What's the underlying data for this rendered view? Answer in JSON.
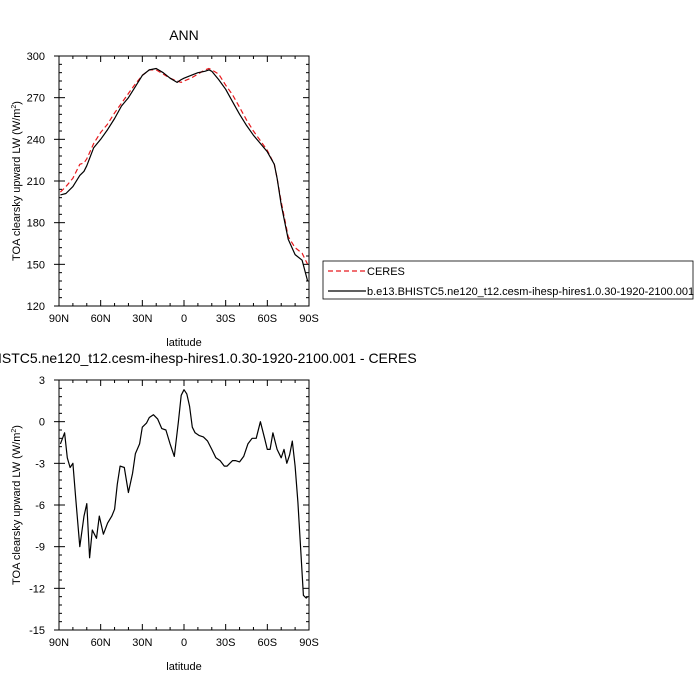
{
  "chart_data": [
    {
      "type": "line",
      "title": "ANN",
      "xlabel": "latitude",
      "ylabel": "TOA clearsky upward LW (W/m",
      "ylabel_sup": "2",
      "ylabel_tail": ")",
      "xlim": [
        90,
        -90
      ],
      "ylim": [
        120,
        300
      ],
      "x_ticks": [
        90,
        60,
        30,
        0,
        -30,
        -60,
        -90
      ],
      "x_tick_labels": [
        "90N",
        "60N",
        "30N",
        "0",
        "30S",
        "60S",
        "90S"
      ],
      "y_ticks": [
        120,
        150,
        180,
        210,
        240,
        270,
        300
      ],
      "y_tick_labels": [
        "120",
        "150",
        "180",
        "210",
        "240",
        "270",
        "300"
      ],
      "legend": {
        "placement": "right",
        "entries": [
          "CERES",
          "b.e13.BHISTC5.ne120_t12.cesm-ihesp-hires1.0.30-1920-2100.001"
        ]
      },
      "series": [
        {
          "name": "CERES",
          "color": "#e8191d",
          "dash": "dashed",
          "x": [
            89,
            85,
            80,
            75,
            72,
            70,
            65,
            60,
            55,
            50,
            45,
            40,
            35,
            30,
            25,
            20,
            15,
            10,
            5,
            2,
            0,
            -5,
            -10,
            -15,
            -18,
            -20,
            -25,
            -30,
            -35,
            -40,
            -45,
            -50,
            -55,
            -60,
            -65,
            -67,
            -70,
            -75,
            -80,
            -85,
            -89
          ],
          "y": [
            202,
            206,
            212,
            222,
            223,
            226,
            237,
            245,
            251,
            259,
            266,
            273,
            280,
            286,
            290,
            290,
            287,
            284,
            282,
            281,
            282,
            284,
            287,
            290,
            291,
            290,
            287,
            279,
            272,
            263,
            254,
            246,
            239,
            232,
            222,
            212,
            195,
            170,
            162,
            158,
            150
          ]
        },
        {
          "name": "b.e13.BHISTC5.ne120_t12.cesm-ihesp-hires1.0.30-1920-2100.001",
          "color": "#000000",
          "dash": "solid",
          "x": [
            89,
            85,
            80,
            75,
            72,
            70,
            65,
            60,
            55,
            50,
            45,
            40,
            35,
            30,
            25,
            20,
            15,
            10,
            5,
            2,
            0,
            -5,
            -10,
            -15,
            -18,
            -20,
            -25,
            -30,
            -35,
            -40,
            -45,
            -50,
            -55,
            -60,
            -65,
            -67,
            -70,
            -75,
            -80,
            -85,
            -89
          ],
          "y": [
            200,
            201,
            206,
            214,
            217,
            221,
            234,
            240,
            247,
            255,
            264,
            270,
            278,
            286,
            290,
            291,
            288,
            284,
            281,
            283,
            284,
            286,
            288,
            289,
            290,
            289,
            283,
            276,
            267,
            258,
            250,
            243,
            237,
            231,
            222,
            212,
            193,
            168,
            157,
            153,
            138
          ]
        }
      ]
    },
    {
      "type": "line",
      "title": "ISTC5.ne120_t12.cesm-ihesp-hires1.0.30-1920-2100.001 - CERES",
      "xlabel": "latitude",
      "ylabel": "TOA clearsky upward LW (W/m",
      "ylabel_sup": "2",
      "ylabel_tail": ")",
      "xlim": [
        90,
        -90
      ],
      "ylim": [
        -15,
        3
      ],
      "x_ticks": [
        90,
        60,
        30,
        0,
        -30,
        -60,
        -90
      ],
      "x_tick_labels": [
        "90N",
        "60N",
        "30N",
        "0",
        "30S",
        "60S",
        "90S"
      ],
      "y_ticks": [
        -15,
        -12,
        -9,
        -6,
        -3,
        0,
        3
      ],
      "y_tick_labels": [
        "-15",
        "-12",
        "-9",
        "-6",
        "-3",
        "0",
        "3"
      ],
      "series": [
        {
          "color": "#000000",
          "dash": "solid",
          "x": [
            89,
            86,
            84,
            82,
            80,
            78,
            75,
            72,
            70,
            68,
            66,
            63,
            61,
            58,
            55,
            52,
            50,
            48,
            46,
            43,
            40,
            37,
            35,
            32,
            30,
            27,
            25,
            22,
            19,
            16,
            13,
            10,
            7,
            4,
            2,
            0,
            -2,
            -4,
            -6,
            -8,
            -11,
            -14,
            -17,
            -20,
            -23,
            -26,
            -29,
            -31,
            -33,
            -35,
            -37,
            -40,
            -43,
            -46,
            -49,
            -52,
            -55,
            -58,
            -60,
            -62,
            -64,
            -67,
            -70,
            -72,
            -74,
            -76,
            -78,
            -80,
            -82,
            -84,
            -86,
            -88,
            -89
          ],
          "y": [
            -1.6,
            -0.8,
            -2.6,
            -3.3,
            -3.0,
            -5.5,
            -9.0,
            -6.8,
            -5.9,
            -9.8,
            -7.8,
            -8.4,
            -6.8,
            -8.1,
            -7.3,
            -6.8,
            -6.3,
            -4.5,
            -3.2,
            -3.3,
            -5.1,
            -3.7,
            -2.3,
            -1.6,
            -0.4,
            -0.1,
            0.3,
            0.5,
            0.2,
            -0.5,
            -0.6,
            -1.6,
            -2.5,
            0.0,
            1.9,
            2.3,
            2.0,
            1.1,
            -0.4,
            -0.8,
            -1.0,
            -1.1,
            -1.4,
            -2.0,
            -2.6,
            -2.8,
            -3.2,
            -3.2,
            -3.0,
            -2.8,
            -2.8,
            -2.9,
            -2.5,
            -1.6,
            -1.2,
            -1.2,
            0.0,
            -1.2,
            -2.0,
            -2.0,
            -0.8,
            -2.0,
            -2.6,
            -2.0,
            -3.0,
            -2.4,
            -1.4,
            -3.2,
            -5.8,
            -9.2,
            -12.5,
            -12.7,
            -12.6
          ]
        }
      ]
    }
  ]
}
